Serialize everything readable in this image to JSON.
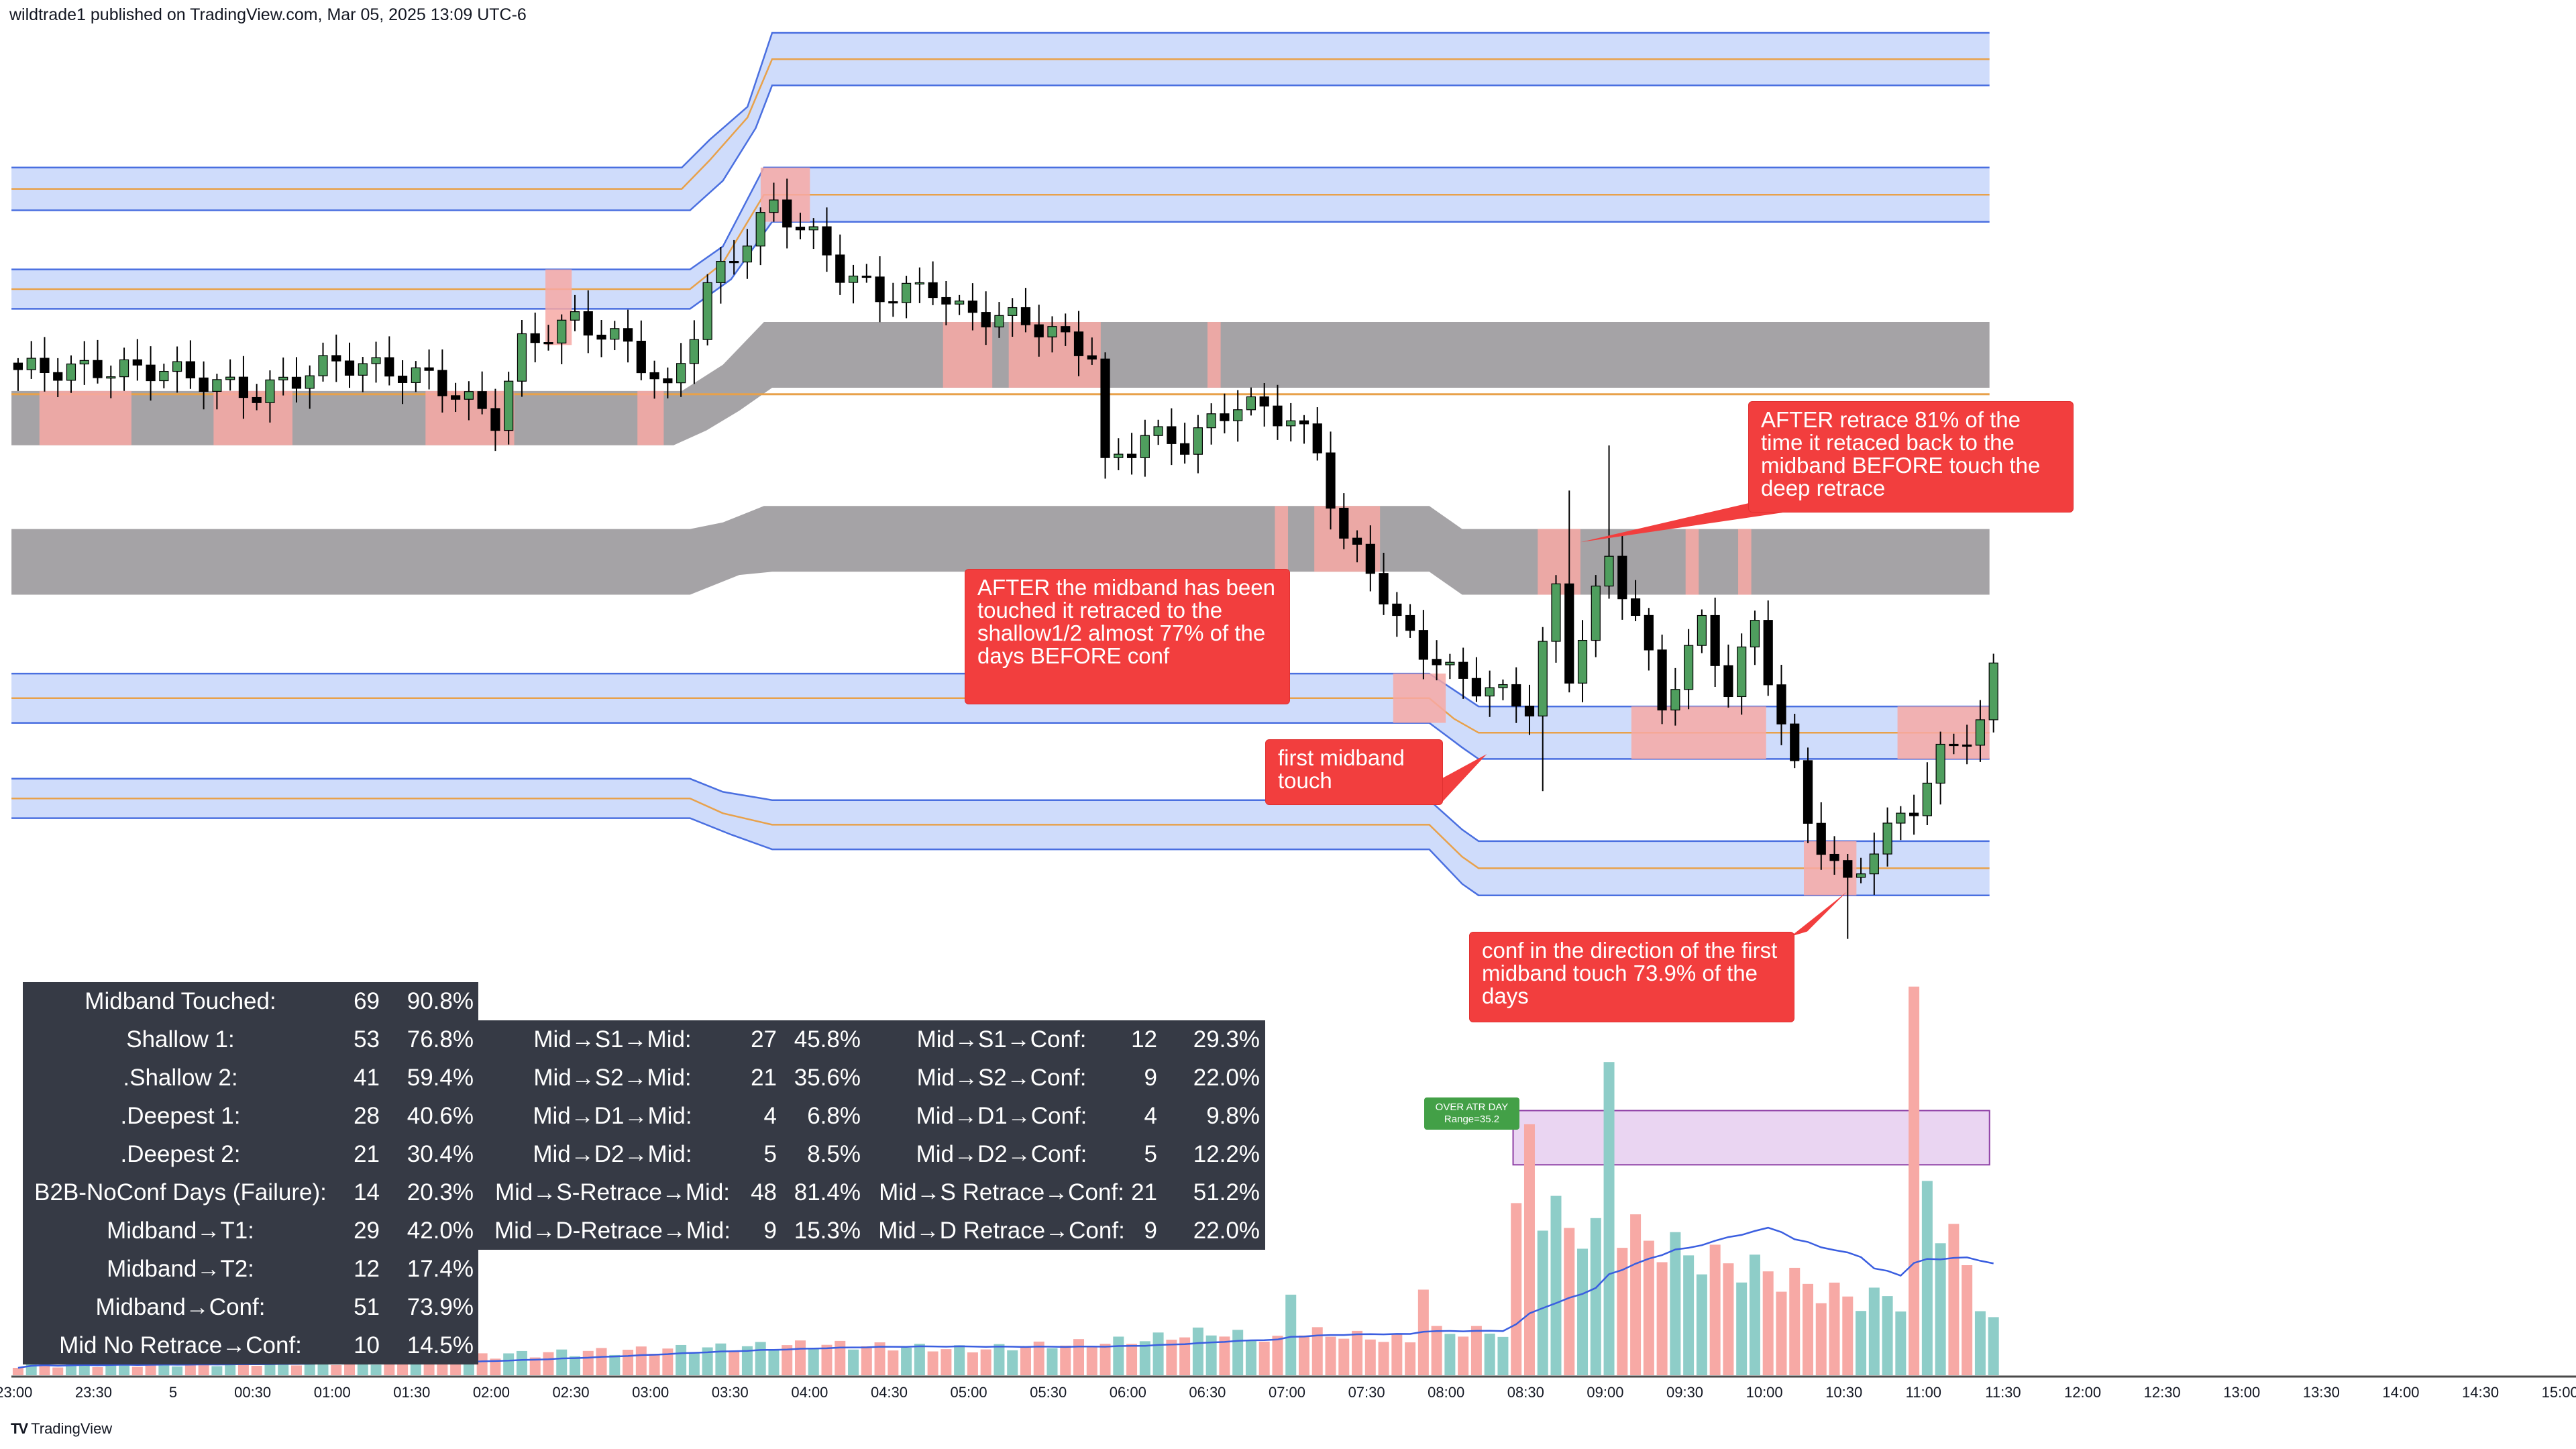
{
  "header": {
    "text": "wildtrade1 published on TradingView.com, Mar 05, 2025 13:09 UTC-6"
  },
  "footer": {
    "logo_text": "TradingView",
    "logo_icon": "tradingview-logo-icon"
  },
  "colors": {
    "up": "#4f9e5e",
    "down": "#000000",
    "vol_up": "#8ecdc8",
    "vol_down": "#f7a9a5",
    "band_blue": "#cfdcfb",
    "band_border": "#4a6fe0",
    "band_gray": "#a5a3a6",
    "midline": "#e8a14a",
    "highlight": "#f7a9a5",
    "annotation": "#f23e3e",
    "vol_ma": "#3a5ee0",
    "atr_box": "#ead5f2",
    "atr_label": "#43a047"
  },
  "annotations": [
    {
      "text": "AFTER retrace 81% of the time it retaced back to the midband BEFORE touch the deep retrace"
    },
    {
      "text": "AFTER the midband has been touched it retraced to the shallow1/2 almost 77% of the days BEFORE conf"
    },
    {
      "text": "first midband touch"
    },
    {
      "text": "conf in the direction of the first midband touch 73.9% of the days"
    }
  ],
  "atr_label": {
    "line1": "OVER ATR DAY",
    "line2": "Range=35.2"
  },
  "stats_table": {
    "col1": [
      [
        "Midband Touched:",
        "69",
        "90.8%"
      ],
      [
        "Shallow 1:",
        "53",
        "76.8%"
      ],
      [
        ".Shallow 2:",
        "41",
        "59.4%"
      ],
      [
        ".Deepest 1:",
        "28",
        "40.6%"
      ],
      [
        ".Deepest 2:",
        "21",
        "30.4%"
      ],
      [
        "B2B-NoConf Days (Failure):",
        "14",
        "20.3%"
      ],
      [
        "Midband→T1:",
        "29",
        "42.0%"
      ],
      [
        "Midband→T2:",
        "12",
        "17.4%"
      ],
      [
        "Midband→Conf:",
        "51",
        "73.9%"
      ],
      [
        "Mid No Retrace→Conf:",
        "10",
        "14.5%"
      ]
    ],
    "col2": [
      [
        "Mid→S1→Mid:",
        "27",
        "45.8%",
        "Mid→S1→Conf:",
        "12",
        "29.3%"
      ],
      [
        "Mid→S2→Mid:",
        "21",
        "35.6%",
        "Mid→S2→Conf:",
        "9",
        "22.0%"
      ],
      [
        "Mid→D1→Mid:",
        "4",
        "6.8%",
        "Mid→D1→Conf:",
        "4",
        "9.8%"
      ],
      [
        "Mid→D2→Mid:",
        "5",
        "8.5%",
        "Mid→D2→Conf:",
        "5",
        "12.2%"
      ],
      [
        "Mid→S-Retrace→Mid:",
        "48",
        "81.4%",
        "Mid→S Retrace→Conf:",
        "21",
        "51.2%"
      ],
      [
        "Mid→D-Retrace→Mid:",
        "9",
        "15.3%",
        "Mid→D Retrace→Conf:",
        "9",
        "22.0%"
      ]
    ]
  },
  "chart_data": {
    "type": "candlestick",
    "interval": "5m",
    "x_tick_labels": [
      "23:00",
      "23:30",
      "5",
      "00:30",
      "01:00",
      "01:30",
      "02:00",
      "02:30",
      "03:00",
      "03:30",
      "04:00",
      "04:30",
      "05:00",
      "05:30",
      "06:00",
      "06:30",
      "07:00",
      "07:30",
      "08:00",
      "08:30",
      "09:00",
      "09:30",
      "10:00",
      "10:30",
      "11:00",
      "11:30",
      "12:00",
      "12:30",
      "13:00",
      "13:30",
      "14:00",
      "14:30",
      "15:00"
    ],
    "price_axis": "hidden",
    "close_keypoints_relative": [
      [
        "23:00",
        615
      ],
      [
        "23:55",
        615
      ],
      [
        "00:30",
        600
      ],
      [
        "01:00",
        620
      ],
      [
        "01:35",
        610
      ],
      [
        "02:00",
        585
      ],
      [
        "02:10",
        630
      ],
      [
        "02:30",
        645
      ],
      [
        "02:50",
        630
      ],
      [
        "03:05",
        600
      ],
      [
        "03:15",
        640
      ],
      [
        "03:20",
        665
      ],
      [
        "03:40",
        705
      ],
      [
        "03:45",
        715
      ],
      [
        "04:00",
        695
      ],
      [
        "04:10",
        675
      ],
      [
        "04:25",
        660
      ],
      [
        "04:45",
        665
      ],
      [
        "04:55",
        650
      ],
      [
        "05:20",
        645
      ],
      [
        "05:45",
        625
      ],
      [
        "05:50",
        555
      ],
      [
        "06:05",
        575
      ],
      [
        "06:20",
        570
      ],
      [
        "06:40",
        595
      ],
      [
        "07:00",
        585
      ],
      [
        "07:10",
        565
      ],
      [
        "07:20",
        510
      ],
      [
        "07:30",
        495
      ],
      [
        "07:40",
        460
      ],
      [
        "08:00",
        430
      ],
      [
        "08:15",
        420
      ],
      [
        "08:30",
        410
      ],
      [
        "08:40",
        480
      ],
      [
        "08:45",
        430
      ],
      [
        "09:00",
        500
      ],
      [
        "09:10",
        465
      ],
      [
        "09:20",
        410
      ],
      [
        "09:35",
        460
      ],
      [
        "09:45",
        420
      ],
      [
        "09:55",
        460
      ],
      [
        "10:05",
        400
      ],
      [
        "10:15",
        340
      ],
      [
        "10:30",
        300
      ],
      [
        "10:40",
        325
      ],
      [
        "10:55",
        350
      ],
      [
        "11:05",
        380
      ],
      [
        "11:20",
        400
      ],
      [
        "11:25",
        430
      ]
    ],
    "volume_keypoints_relative": [
      [
        "23:00",
        6
      ],
      [
        "01:30",
        8
      ],
      [
        "02:00",
        12
      ],
      [
        "03:00",
        15
      ],
      [
        "04:00",
        18
      ],
      [
        "05:00",
        15
      ],
      [
        "06:00",
        20
      ],
      [
        "06:30",
        25
      ],
      [
        "06:55",
        20
      ],
      [
        "07:00",
        50
      ],
      [
        "07:05",
        25
      ],
      [
        "07:45",
        20
      ],
      [
        "07:50",
        55
      ],
      [
        "07:55",
        25
      ],
      [
        "08:20",
        25
      ],
      [
        "08:30",
        150
      ],
      [
        "08:35",
        95
      ],
      [
        "08:55",
        80
      ],
      [
        "09:00",
        185
      ],
      [
        "09:05",
        85
      ],
      [
        "09:30",
        70
      ],
      [
        "10:00",
        60
      ],
      [
        "10:30",
        45
      ],
      [
        "10:50",
        45
      ],
      [
        "10:55",
        200
      ],
      [
        "11:00",
        110
      ],
      [
        "11:25",
        30
      ]
    ],
    "volume_ma": true
  }
}
